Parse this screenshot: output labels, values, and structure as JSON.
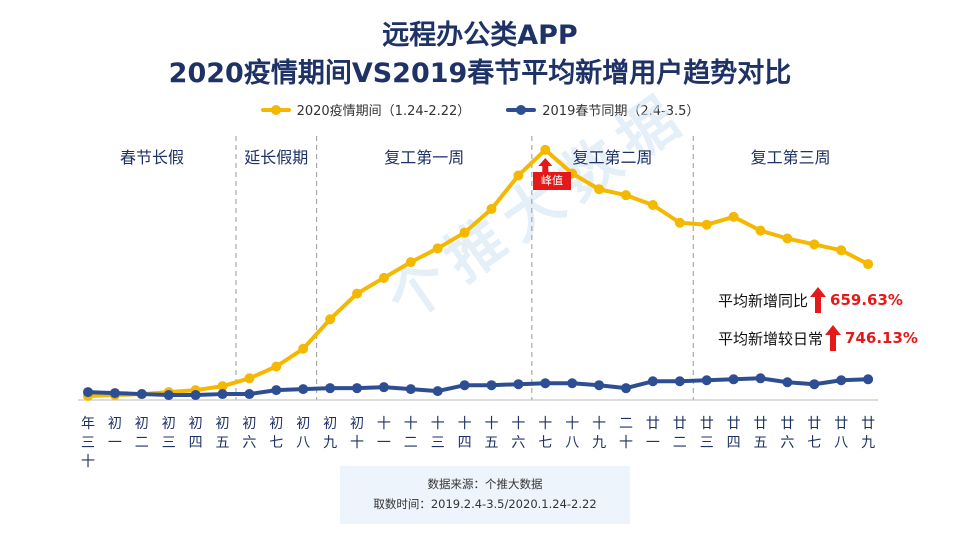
{
  "title_line1": "远程办公类APP",
  "title_line2": "2020疫情期间VS2019春节平均新增用户趋势对比",
  "watermark": "个推大数据",
  "colors": {
    "series_2020": "#f5b800",
    "series_2019": "#2e4e93",
    "accent_red": "#e41a1a"
  },
  "periods": [
    "春节长假",
    "延长假期",
    "复工第一周",
    "复工第二周",
    "复工第三周"
  ],
  "peak_label": "峰值",
  "annotations": {
    "yoy_label": "平均新增同比",
    "yoy_value": "659.63%",
    "daily_label": "平均新增较日常",
    "daily_value": "746.13%"
  },
  "source": {
    "line1": "数据来源：个推大数据",
    "line2": "取数时间：2019.2.4-3.5/2020.1.24-2.22"
  },
  "chart_data": {
    "type": "line",
    "categories": [
      "年三十",
      "初一",
      "初二",
      "初三",
      "初四",
      "初五",
      "初六",
      "初七",
      "初八",
      "初九",
      "初十",
      "十一",
      "十二",
      "十三",
      "十四",
      "十五",
      "十六",
      "十七",
      "十八",
      "十九",
      "二十",
      "廿一",
      "廿二",
      "廿三",
      "廿四",
      "廿五",
      "廿六",
      "廿七",
      "廿八",
      "廿九"
    ],
    "series": [
      {
        "name": "2020疫情期间（1.24-2.22）",
        "values": [
          1,
          1.5,
          2,
          3,
          4,
          6,
          10,
          16,
          25,
          40,
          53,
          61,
          69,
          76,
          84,
          96,
          113,
          126,
          114,
          106,
          103,
          98,
          89,
          88,
          92,
          85,
          81,
          78,
          75,
          68
        ]
      },
      {
        "name": "2019春节同期（2.4-3.5）",
        "values": [
          3,
          2.5,
          2,
          1.5,
          1.5,
          2,
          2,
          4,
          4.5,
          5,
          5,
          5.5,
          4.5,
          3.5,
          6.5,
          6.5,
          7,
          7.5,
          7.5,
          6.5,
          5,
          8.5,
          8.5,
          9,
          9.5,
          10,
          8,
          7,
          9,
          9.5
        ]
      }
    ],
    "ylim": [
      0,
      130
    ],
    "grid": false,
    "legend_position": "top",
    "period_boundaries_after": [
      "初五",
      "初八",
      "十六",
      "廿二"
    ]
  }
}
